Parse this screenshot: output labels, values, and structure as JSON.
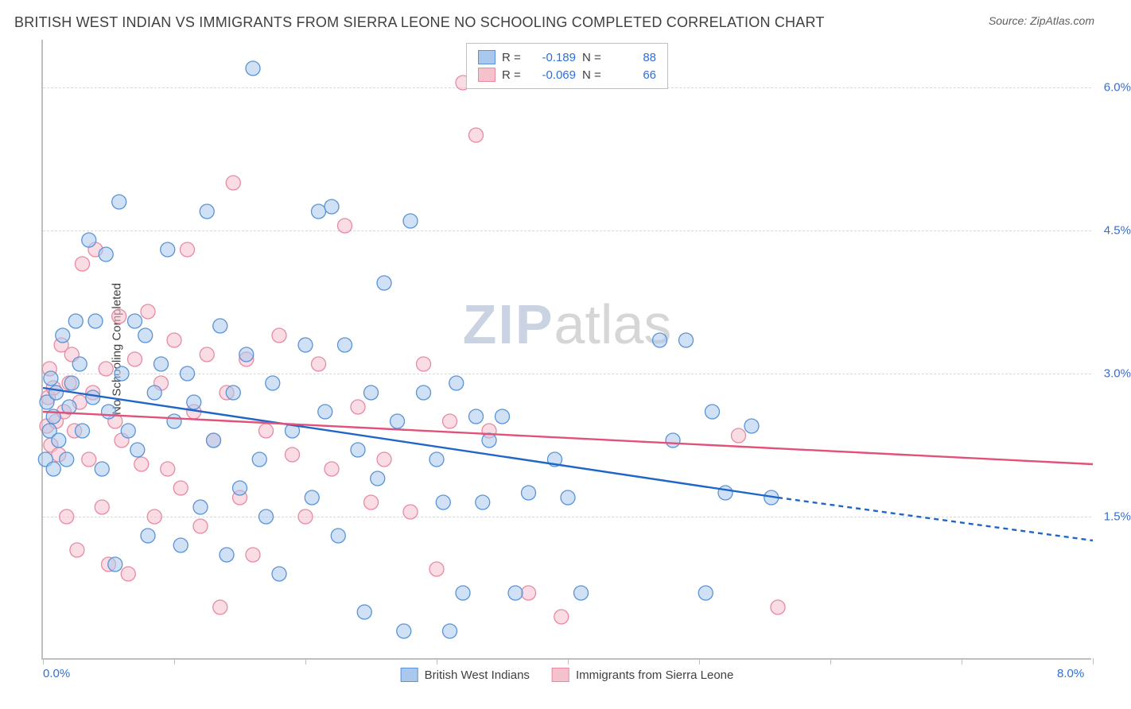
{
  "title": "BRITISH WEST INDIAN VS IMMIGRANTS FROM SIERRA LEONE NO SCHOOLING COMPLETED CORRELATION CHART",
  "source": "Source: ZipAtlas.com",
  "ylabel": "No Schooling Completed",
  "watermark": {
    "part1": "ZIP",
    "part2": "atlas"
  },
  "colors": {
    "series1_fill": "#a9c8ec",
    "series1_stroke": "#5a94d6",
    "series1_line": "#1f66c7",
    "series2_fill": "#f5c1cd",
    "series2_stroke": "#e88aa2",
    "series2_line": "#e0527a",
    "grid": "#d9d9d9",
    "axis": "#bfbfbf",
    "tick_label": "#2e6fd9",
    "text": "#404040"
  },
  "chart": {
    "type": "scatter",
    "xlim": [
      0.0,
      8.0
    ],
    "ylim": [
      0.0,
      6.5
    ],
    "y_gridlines": [
      1.5,
      3.0,
      4.5,
      6.0
    ],
    "y_tick_labels": [
      "1.5%",
      "3.0%",
      "4.5%",
      "6.0%"
    ],
    "x_ticks": [
      0,
      1,
      2,
      3,
      4,
      5,
      6,
      7,
      8
    ],
    "x_tick_labels": {
      "0": "0.0%",
      "8": "8.0%"
    },
    "marker_radius": 9,
    "marker_opacity": 0.55,
    "line_width": 2.4
  },
  "legend_top": [
    {
      "swatch": "series1",
      "r_label": "R =",
      "r_value": "-0.189",
      "n_label": "N =",
      "n_value": "88"
    },
    {
      "swatch": "series2",
      "r_label": "R =",
      "r_value": "-0.069",
      "n_label": "N =",
      "n_value": "66"
    }
  ],
  "legend_bottom": [
    {
      "swatch": "series1",
      "label": "British West Indians"
    },
    {
      "swatch": "series2",
      "label": "Immigrants from Sierra Leone"
    }
  ],
  "trend_lines": {
    "series1": {
      "x1": 0.0,
      "y1": 2.85,
      "x2": 5.6,
      "y2": 1.7,
      "x2_dash": 8.0,
      "y2_dash": 1.25
    },
    "series2": {
      "x1": 0.0,
      "y1": 2.6,
      "x2": 8.0,
      "y2": 2.05
    }
  },
  "series1_points": [
    [
      0.02,
      2.1
    ],
    [
      0.03,
      2.7
    ],
    [
      0.05,
      2.4
    ],
    [
      0.06,
      2.95
    ],
    [
      0.08,
      2.0
    ],
    [
      0.08,
      2.55
    ],
    [
      0.1,
      2.8
    ],
    [
      0.12,
      2.3
    ],
    [
      0.15,
      3.4
    ],
    [
      0.18,
      2.1
    ],
    [
      0.2,
      2.65
    ],
    [
      0.22,
      2.9
    ],
    [
      0.25,
      3.55
    ],
    [
      0.28,
      3.1
    ],
    [
      0.3,
      2.4
    ],
    [
      0.35,
      4.4
    ],
    [
      0.38,
      2.75
    ],
    [
      0.4,
      3.55
    ],
    [
      0.45,
      2.0
    ],
    [
      0.48,
      4.25
    ],
    [
      0.5,
      2.6
    ],
    [
      0.55,
      1.0
    ],
    [
      0.58,
      4.8
    ],
    [
      0.6,
      3.0
    ],
    [
      0.65,
      2.4
    ],
    [
      0.7,
      3.55
    ],
    [
      0.72,
      2.2
    ],
    [
      0.78,
      3.4
    ],
    [
      0.8,
      1.3
    ],
    [
      0.85,
      2.8
    ],
    [
      0.9,
      3.1
    ],
    [
      0.95,
      4.3
    ],
    [
      1.0,
      2.5
    ],
    [
      1.05,
      1.2
    ],
    [
      1.1,
      3.0
    ],
    [
      1.15,
      2.7
    ],
    [
      1.2,
      1.6
    ],
    [
      1.25,
      4.7
    ],
    [
      1.3,
      2.3
    ],
    [
      1.35,
      3.5
    ],
    [
      1.4,
      1.1
    ],
    [
      1.45,
      2.8
    ],
    [
      1.5,
      1.8
    ],
    [
      1.55,
      3.2
    ],
    [
      1.6,
      6.2
    ],
    [
      1.65,
      2.1
    ],
    [
      1.7,
      1.5
    ],
    [
      1.75,
      2.9
    ],
    [
      1.8,
      0.9
    ],
    [
      1.9,
      2.4
    ],
    [
      2.0,
      3.3
    ],
    [
      2.05,
      1.7
    ],
    [
      2.1,
      4.7
    ],
    [
      2.15,
      2.6
    ],
    [
      2.2,
      4.75
    ],
    [
      2.25,
      1.3
    ],
    [
      2.3,
      3.3
    ],
    [
      2.4,
      2.2
    ],
    [
      2.45,
      0.5
    ],
    [
      2.5,
      2.8
    ],
    [
      2.55,
      1.9
    ],
    [
      2.6,
      3.95
    ],
    [
      2.7,
      2.5
    ],
    [
      2.75,
      0.3
    ],
    [
      2.8,
      4.6
    ],
    [
      2.9,
      2.8
    ],
    [
      3.0,
      2.1
    ],
    [
      3.05,
      1.65
    ],
    [
      3.1,
      0.3
    ],
    [
      3.15,
      2.9
    ],
    [
      3.2,
      0.7
    ],
    [
      3.3,
      2.55
    ],
    [
      3.35,
      1.65
    ],
    [
      3.4,
      2.3
    ],
    [
      3.5,
      2.55
    ],
    [
      3.6,
      0.7
    ],
    [
      3.7,
      1.75
    ],
    [
      3.9,
      2.1
    ],
    [
      4.0,
      1.7
    ],
    [
      4.1,
      0.7
    ],
    [
      4.7,
      3.35
    ],
    [
      4.8,
      2.3
    ],
    [
      4.9,
      3.35
    ],
    [
      5.05,
      0.7
    ],
    [
      5.1,
      2.6
    ],
    [
      5.2,
      1.75
    ],
    [
      5.4,
      2.45
    ],
    [
      5.55,
      1.7
    ]
  ],
  "series2_points": [
    [
      0.03,
      2.45
    ],
    [
      0.04,
      2.75
    ],
    [
      0.05,
      3.05
    ],
    [
      0.06,
      2.25
    ],
    [
      0.08,
      2.85
    ],
    [
      0.1,
      2.5
    ],
    [
      0.12,
      2.15
    ],
    [
      0.14,
      3.3
    ],
    [
      0.16,
      2.6
    ],
    [
      0.18,
      1.5
    ],
    [
      0.2,
      2.9
    ],
    [
      0.22,
      3.2
    ],
    [
      0.24,
      2.4
    ],
    [
      0.26,
      1.15
    ],
    [
      0.28,
      2.7
    ],
    [
      0.3,
      4.15
    ],
    [
      0.35,
      2.1
    ],
    [
      0.38,
      2.8
    ],
    [
      0.4,
      4.3
    ],
    [
      0.45,
      1.6
    ],
    [
      0.48,
      3.05
    ],
    [
      0.5,
      1.0
    ],
    [
      0.55,
      2.5
    ],
    [
      0.58,
      3.6
    ],
    [
      0.6,
      2.3
    ],
    [
      0.65,
      0.9
    ],
    [
      0.7,
      3.15
    ],
    [
      0.75,
      2.05
    ],
    [
      0.8,
      3.65
    ],
    [
      0.85,
      1.5
    ],
    [
      0.9,
      2.9
    ],
    [
      0.95,
      2.0
    ],
    [
      1.0,
      3.35
    ],
    [
      1.05,
      1.8
    ],
    [
      1.1,
      4.3
    ],
    [
      1.15,
      2.6
    ],
    [
      1.2,
      1.4
    ],
    [
      1.25,
      3.2
    ],
    [
      1.3,
      2.3
    ],
    [
      1.35,
      0.55
    ],
    [
      1.4,
      2.8
    ],
    [
      1.45,
      5.0
    ],
    [
      1.5,
      1.7
    ],
    [
      1.55,
      3.15
    ],
    [
      1.6,
      1.1
    ],
    [
      1.7,
      2.4
    ],
    [
      1.8,
      3.4
    ],
    [
      1.9,
      2.15
    ],
    [
      2.0,
      1.5
    ],
    [
      2.1,
      3.1
    ],
    [
      2.2,
      2.0
    ],
    [
      2.3,
      4.55
    ],
    [
      2.4,
      2.65
    ],
    [
      2.5,
      1.65
    ],
    [
      2.6,
      2.1
    ],
    [
      2.8,
      1.55
    ],
    [
      2.9,
      3.1
    ],
    [
      3.0,
      0.95
    ],
    [
      3.1,
      2.5
    ],
    [
      3.2,
      6.05
    ],
    [
      3.3,
      5.5
    ],
    [
      3.4,
      2.4
    ],
    [
      3.7,
      0.7
    ],
    [
      5.3,
      2.35
    ],
    [
      5.6,
      0.55
    ],
    [
      3.95,
      0.45
    ]
  ]
}
